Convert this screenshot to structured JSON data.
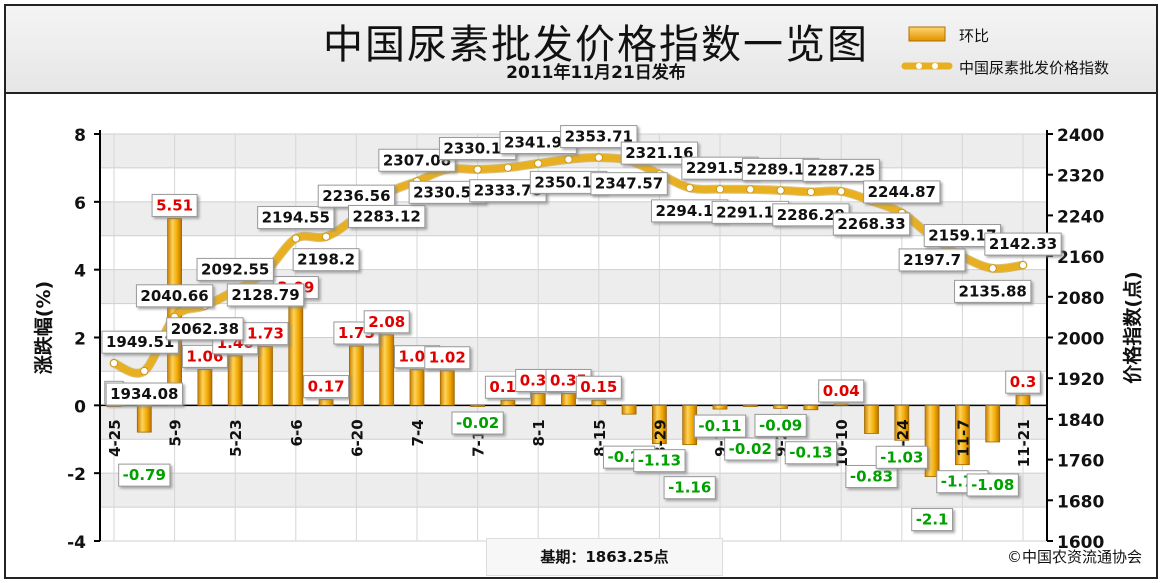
{
  "header": {
    "title": "中国尿素批发价格指数一览图",
    "subtitle": "2011年11月21日发布"
  },
  "legend": {
    "bar_label": "环比",
    "line_label": "中国尿素批发价格指数"
  },
  "footer": {
    "base_label": "基期：1863.25点",
    "copyright": "©中国农资流通协会"
  },
  "colors": {
    "bar_fill": "#f0a800",
    "line": "#e8b020",
    "positive_label": "#e00000",
    "negative_label": "#00a000"
  },
  "chart_data": {
    "type": "bar+line",
    "xlabel": "",
    "ylabel_left": "涨跌幅(%)",
    "ylabel_right": "价格指数(点)",
    "ylim_left": [
      -4,
      8
    ],
    "yticks_left": [
      -4,
      -2,
      0,
      2,
      4,
      6,
      8
    ],
    "ylim_right": [
      1600,
      2400
    ],
    "yticks_right": [
      1600,
      1680,
      1760,
      1840,
      1920,
      2000,
      2080,
      2160,
      2240,
      2320,
      2400
    ],
    "x_tick_labels": [
      "4-25",
      "5-9",
      "5-23",
      "6-6",
      "6-20",
      "7-4",
      "7-18",
      "8-1",
      "8-15",
      "8-29",
      "9-12",
      "9-25",
      "10-10",
      "10-24",
      "11-7",
      "11-21"
    ],
    "grid": true,
    "legend_position": "top-right",
    "series": [
      {
        "name": "环比",
        "type": "bar",
        "values": [
          0,
          -0.79,
          5.51,
          1.06,
          1.46,
          1.73,
          3.09,
          0.17,
          1.75,
          2.08,
          1.05,
          1.02,
          -0.02,
          0.15,
          0.35,
          0.35,
          0.15,
          -0.26,
          -1.13,
          -1.16,
          -0.11,
          -0.02,
          -0.09,
          -0.13,
          0.04,
          -0.83,
          -1.03,
          -2.1,
          -1.75,
          -1.08,
          0.3
        ]
      },
      {
        "name": "中国尿素批发价格指数",
        "type": "line",
        "values": [
          1949.51,
          1934.08,
          2040.66,
          2062.38,
          2092.55,
          2128.79,
          2194.55,
          2198.2,
          2236.56,
          2283.12,
          2307.08,
          2330.56,
          2330.18,
          2333.76,
          2341.99,
          2350.12,
          2353.71,
          2347.57,
          2321.16,
          2294.14,
          2291.54,
          2291.16,
          2289.19,
          2286.29,
          2287.25,
          2268.33,
          2244.87,
          2197.7,
          2159.17,
          2135.88,
          2142.33
        ]
      }
    ]
  }
}
